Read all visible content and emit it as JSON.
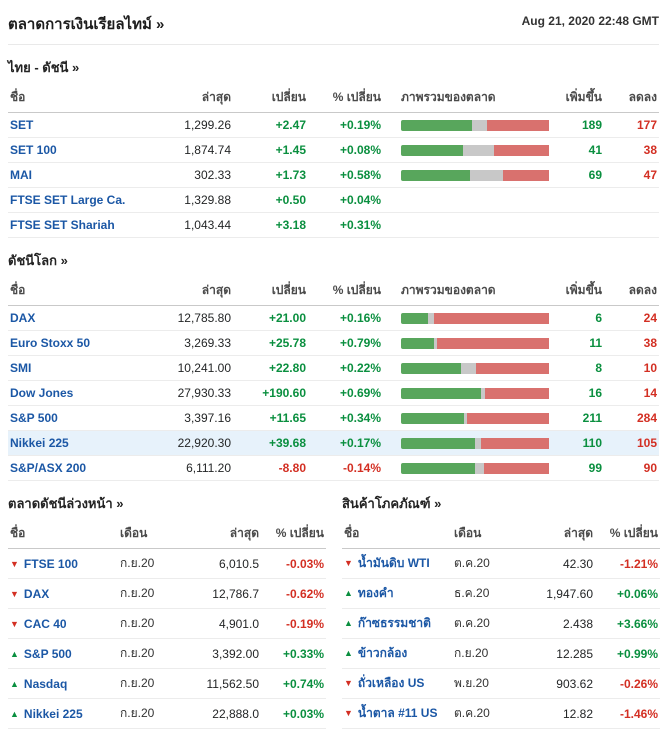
{
  "header": {
    "title": "ตลาดการเงินเรียลไทม์ »",
    "timestamp": "Aug 21, 2020 22:48 GMT"
  },
  "colors": {
    "link_blue": "#1b57a5",
    "positive_green": "#0a8f3f",
    "negative_red": "#d32f23",
    "bar_green": "#58a65c",
    "bar_gray": "#c8c8c8",
    "bar_red": "#d9716e",
    "row_highlight": "#e7f2fb"
  },
  "thai": {
    "title": "ไทย - ดัชนี  »",
    "cols": {
      "name": "ชื่อ",
      "last": "ล่าสุด",
      "change": "เปลี่ยน",
      "pct": "% เปลี่ยน",
      "overview": "ภาพรวมของตลาด",
      "adv": "เพิ่มขึ้น",
      "dec": "ลดลง"
    },
    "rows": [
      {
        "name": "SET",
        "last": "1,299.26",
        "change": "+2.47",
        "pct": "+0.19%",
        "dir": "up",
        "bar": [
          47,
          10,
          43
        ],
        "adv": "189",
        "dec": "177"
      },
      {
        "name": "SET 100",
        "last": "1,874.74",
        "change": "+1.45",
        "pct": "+0.08%",
        "dir": "up",
        "bar": [
          41,
          21,
          38
        ],
        "adv": "41",
        "dec": "38"
      },
      {
        "name": "MAI",
        "last": "302.33",
        "change": "+1.73",
        "pct": "+0.58%",
        "dir": "up",
        "bar": [
          46,
          22,
          32
        ],
        "adv": "69",
        "dec": "47"
      },
      {
        "name": "FTSE SET Large Ca.",
        "last": "1,329.88",
        "change": "+0.50",
        "pct": "+0.04%",
        "dir": "up",
        "bar": null,
        "adv": "",
        "dec": ""
      },
      {
        "name": "FTSE SET Shariah",
        "last": "1,043.44",
        "change": "+3.18",
        "pct": "+0.31%",
        "dir": "up",
        "bar": null,
        "adv": "",
        "dec": ""
      }
    ]
  },
  "world": {
    "title": "ดัชนีโลก »",
    "cols": {
      "name": "ชื่อ",
      "last": "ล่าสุด",
      "change": "เปลี่ยน",
      "pct": "% เปลี่ยน",
      "overview": "ภาพรวมของตลาด",
      "adv": "เพิ่มขึ้น",
      "dec": "ลดลง"
    },
    "rows": [
      {
        "name": "DAX",
        "last": "12,785.80",
        "change": "+21.00",
        "pct": "+0.16%",
        "dir": "up",
        "bar": [
          18,
          4,
          78
        ],
        "adv": "6",
        "dec": "24",
        "hl": ""
      },
      {
        "name": "Euro Stoxx 50",
        "last": "3,269.33",
        "change": "+25.78",
        "pct": "+0.79%",
        "dir": "up",
        "bar": [
          22,
          2,
          76
        ],
        "adv": "11",
        "dec": "38",
        "hl": ""
      },
      {
        "name": "SMI",
        "last": "10,241.00",
        "change": "+22.80",
        "pct": "+0.22%",
        "dir": "up",
        "bar": [
          40,
          10,
          50
        ],
        "adv": "8",
        "dec": "10",
        "hl": ""
      },
      {
        "name": "Dow Jones",
        "last": "27,930.33",
        "change": "+190.60",
        "pct": "+0.69%",
        "dir": "up",
        "bar": [
          53,
          3,
          44
        ],
        "adv": "16",
        "dec": "14",
        "hl": ""
      },
      {
        "name": "S&P 500",
        "last": "3,397.16",
        "change": "+11.65",
        "pct": "+0.34%",
        "dir": "up",
        "bar": [
          42,
          2,
          56
        ],
        "adv": "211",
        "dec": "284",
        "hl": ""
      },
      {
        "name": "Nikkei 225",
        "last": "22,920.30",
        "change": "+39.68",
        "pct": "+0.17%",
        "dir": "up",
        "bar": [
          49,
          4,
          47
        ],
        "adv": "110",
        "dec": "105",
        "hl": "hl"
      },
      {
        "name": "S&P/ASX 200",
        "last": "6,111.20",
        "change": "-8.80",
        "pct": "-0.14%",
        "dir": "down",
        "bar": [
          49,
          6,
          45
        ],
        "adv": "99",
        "dec": "90",
        "hl": ""
      }
    ]
  },
  "futures": {
    "title": "ตลาดดัชนีล่วงหน้า »",
    "cols": {
      "name": "ชื่อ",
      "month": "เดือน",
      "last": "ล่าสุด",
      "pct": "% เปลี่ยน"
    },
    "rows": [
      {
        "name": "FTSE 100",
        "arrow": "▼",
        "dir": "down",
        "month": "ก.ย.20",
        "last": "6,010.5",
        "pct": "-0.03%"
      },
      {
        "name": "DAX",
        "arrow": "▼",
        "dir": "down",
        "month": "ก.ย.20",
        "last": "12,786.7",
        "pct": "-0.62%"
      },
      {
        "name": "CAC 40",
        "arrow": "▼",
        "dir": "down",
        "month": "ก.ย.20",
        "last": "4,901.0",
        "pct": "-0.19%"
      },
      {
        "name": "S&P 500",
        "arrow": "▲",
        "dir": "up",
        "month": "ก.ย.20",
        "last": "3,392.00",
        "pct": "+0.33%"
      },
      {
        "name": "Nasdaq",
        "arrow": "▲",
        "dir": "up",
        "month": "ก.ย.20",
        "last": "11,562.50",
        "pct": "+0.74%"
      },
      {
        "name": "Nikkei 225",
        "arrow": "▲",
        "dir": "up",
        "month": "ก.ย.20",
        "last": "22,888.0",
        "pct": "+0.03%"
      }
    ]
  },
  "commodities": {
    "title": "สินค้าโภคภัณฑ์ »",
    "cols": {
      "name": "ชื่อ",
      "month": "เดือน",
      "last": "ล่าสุด",
      "pct": "% เปลี่ยน"
    },
    "rows": [
      {
        "name": "น้ำมันดิบ WTI",
        "arrow": "▼",
        "dir": "down",
        "month": "ต.ค.20",
        "last": "42.30",
        "pct": "-1.21%"
      },
      {
        "name": "ทองคำ",
        "arrow": "▲",
        "dir": "up",
        "month": "ธ.ค.20",
        "last": "1,947.60",
        "pct": "+0.06%"
      },
      {
        "name": "ก๊าซธรรมชาติ",
        "arrow": "▲",
        "dir": "up",
        "month": "ต.ค.20",
        "last": "2.438",
        "pct": "+3.66%"
      },
      {
        "name": "ข้าวกล้อง",
        "arrow": "▲",
        "dir": "up",
        "month": "ก.ย.20",
        "last": "12.285",
        "pct": "+0.99%"
      },
      {
        "name": "ถั่วเหลือง US",
        "arrow": "▼",
        "dir": "down",
        "month": "พ.ย.20",
        "last": "903.62",
        "pct": "-0.26%"
      },
      {
        "name": "น้ำตาล #11 US",
        "arrow": "▼",
        "dir": "down",
        "month": "ต.ค.20",
        "last": "12.82",
        "pct": "-1.46%"
      }
    ]
  }
}
